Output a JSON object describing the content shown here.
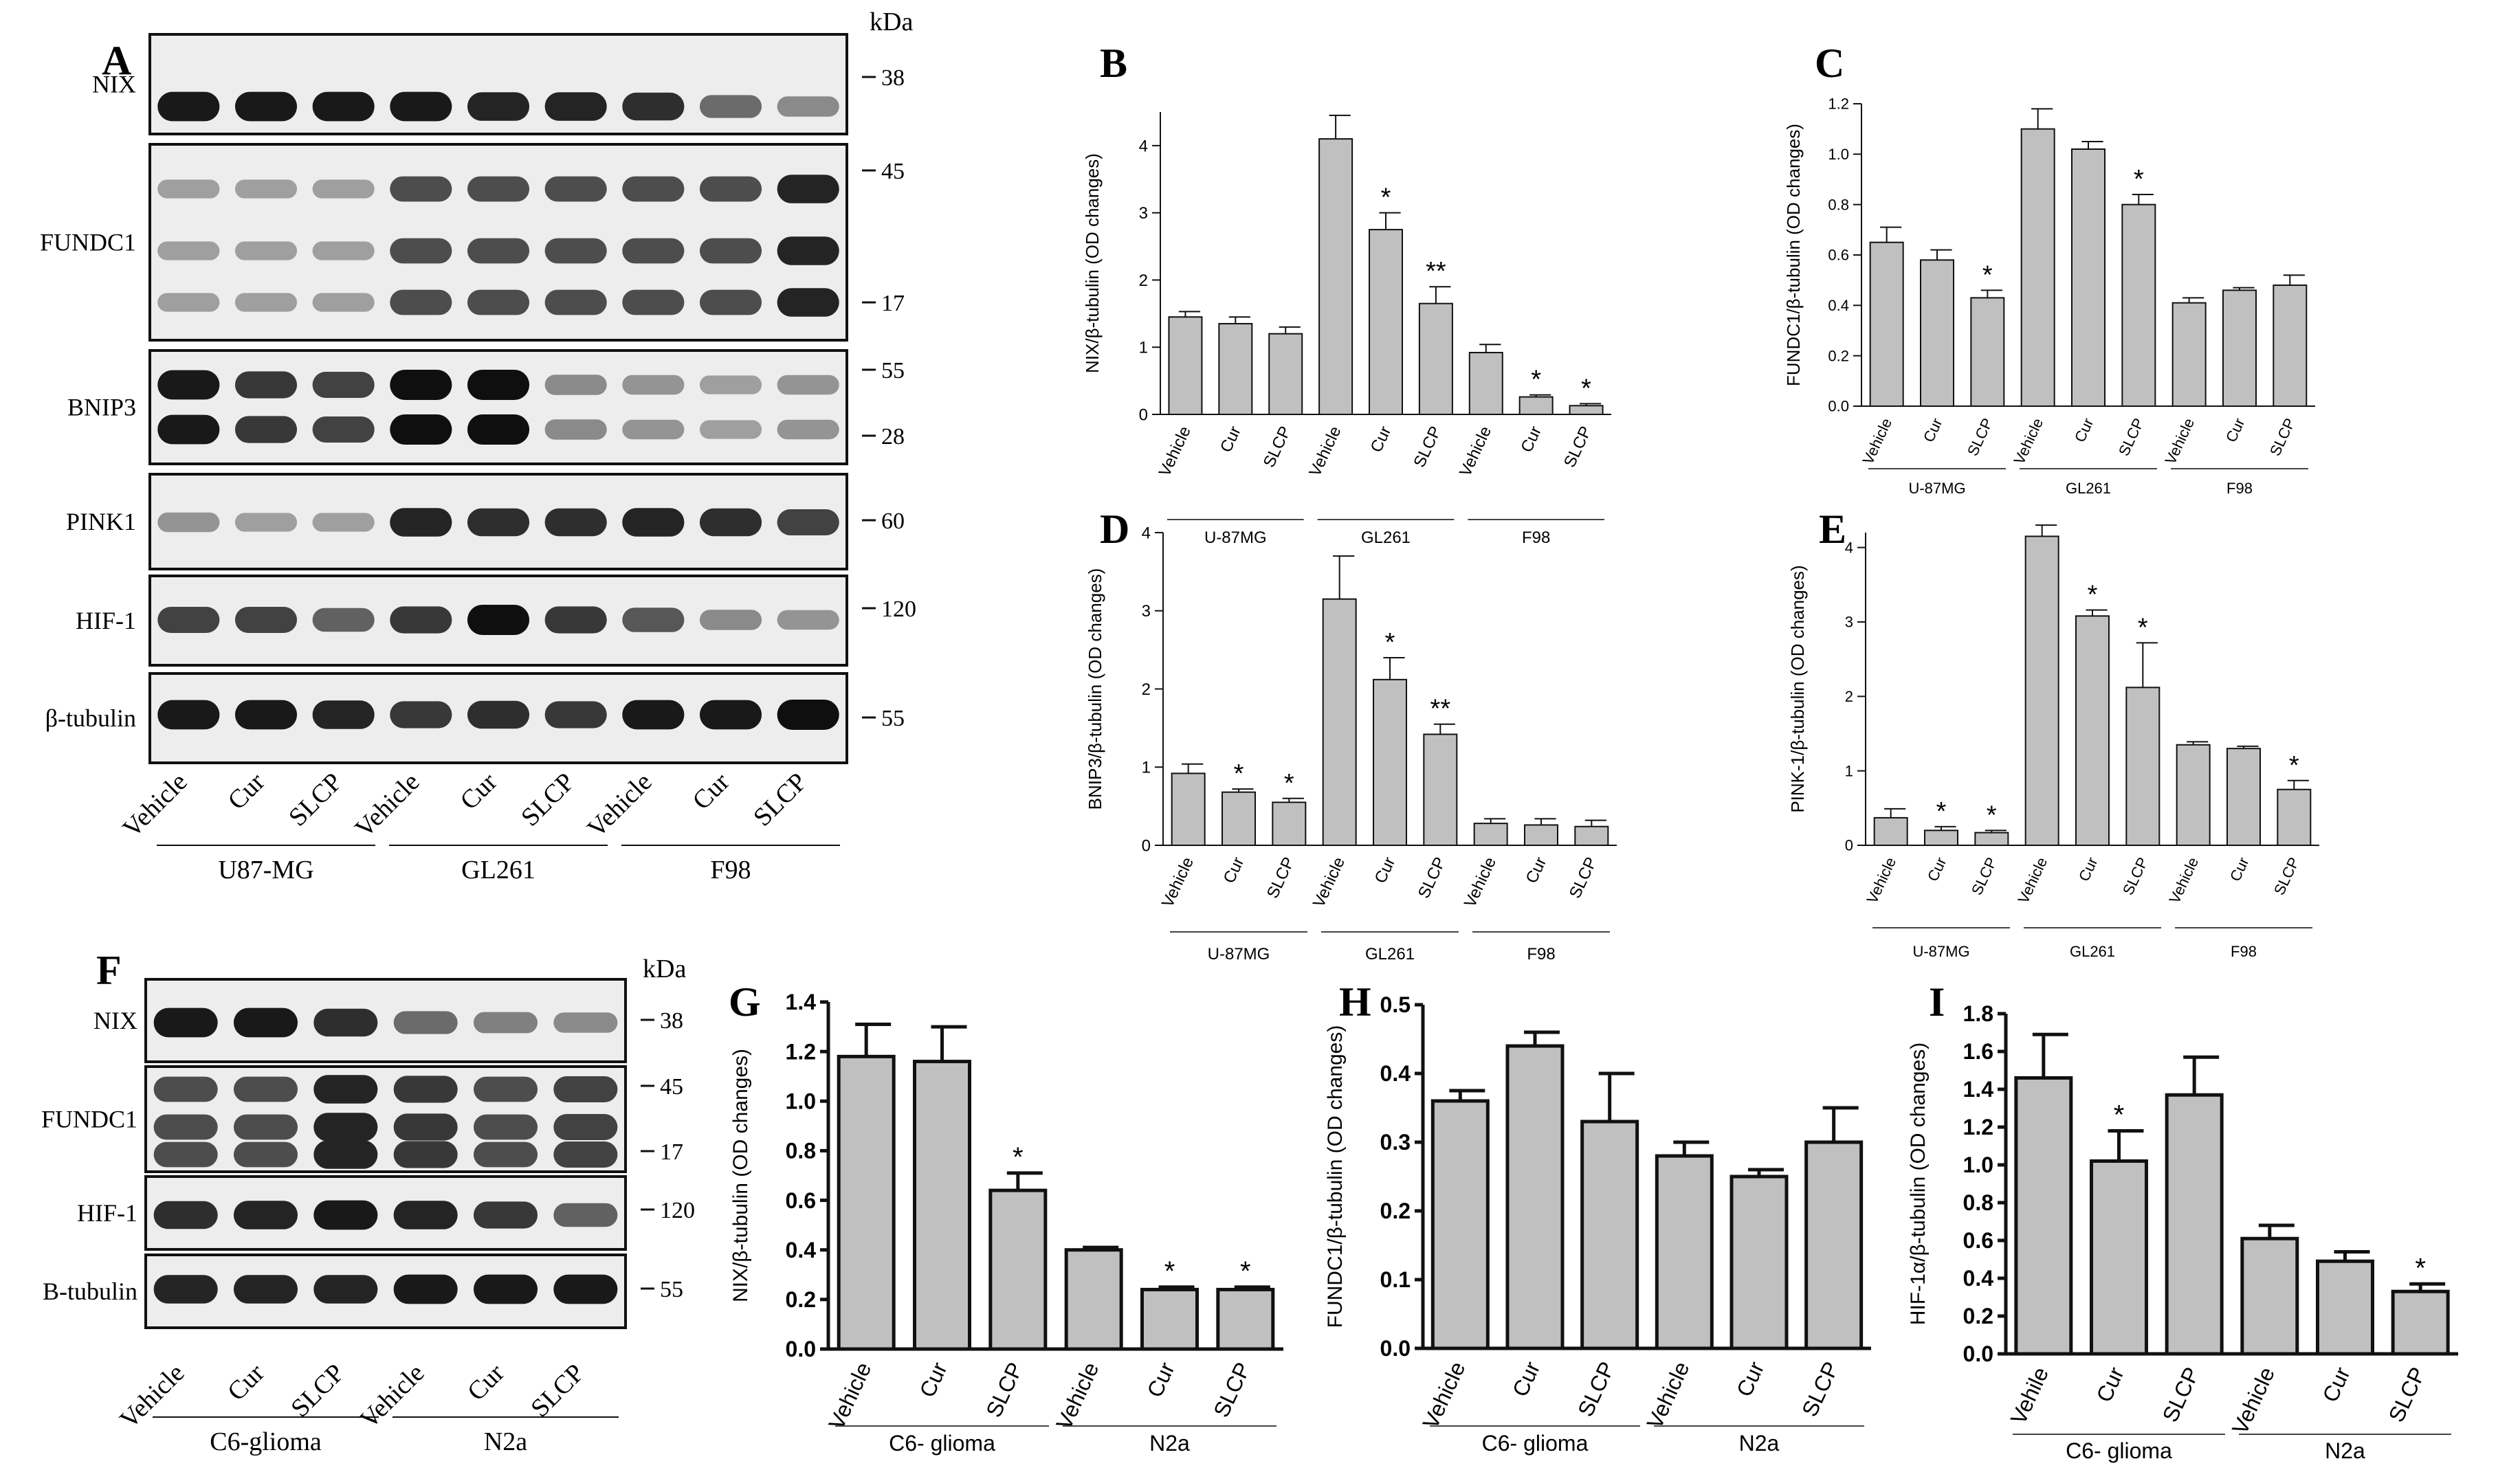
{
  "blotA": {
    "letter": "A",
    "kda_label": "kDa",
    "rows": [
      {
        "label": "NIX",
        "markers": [
          "38"
        ],
        "bands": [
          0.95,
          0.95,
          0.95,
          0.95,
          0.9,
          0.9,
          0.85,
          0.55,
          0.4
        ]
      },
      {
        "label": "FUNDC1",
        "markers": [
          "45",
          "17"
        ],
        "bands": [
          0.3,
          0.3,
          0.3,
          0.7,
          0.7,
          0.7,
          0.7,
          0.7,
          0.9
        ]
      },
      {
        "label": "BNIP3",
        "markers": [
          "55",
          "28"
        ],
        "bands": [
          0.95,
          0.8,
          0.75,
          1.0,
          1.0,
          0.4,
          0.35,
          0.3,
          0.35
        ]
      },
      {
        "label": "PINK1",
        "markers": [
          "60"
        ],
        "bands": [
          0.35,
          0.3,
          0.3,
          0.9,
          0.85,
          0.85,
          0.9,
          0.85,
          0.75
        ]
      },
      {
        "label": "HIF-1",
        "markers": [
          "120"
        ],
        "bands": [
          0.75,
          0.75,
          0.6,
          0.8,
          1.0,
          0.8,
          0.65,
          0.4,
          0.35
        ]
      },
      {
        "label": "β-tubulin",
        "markers": [
          "55"
        ],
        "bands": [
          0.95,
          0.95,
          0.9,
          0.8,
          0.85,
          0.8,
          0.95,
          0.95,
          1.0
        ]
      }
    ],
    "lanes": [
      "Vehicle",
      "Cur",
      "SLCP",
      "Vehicle",
      "Cur",
      "SLCP",
      "Vehicle",
      "Cur",
      "SLCP"
    ],
    "groups": [
      "U87-MG",
      "GL261",
      "F98"
    ]
  },
  "blotF": {
    "letter": "F",
    "kda_label": "kDa",
    "rows": [
      {
        "label": "NIX",
        "markers": [
          "38"
        ],
        "bands": [
          0.95,
          0.95,
          0.85,
          0.55,
          0.45,
          0.4
        ]
      },
      {
        "label": "FUNDC1",
        "markers": [
          "45",
          "17"
        ],
        "bands": [
          0.7,
          0.7,
          0.9,
          0.8,
          0.7,
          0.75
        ]
      },
      {
        "label": "HIF-1",
        "markers": [
          "120"
        ],
        "bands": [
          0.85,
          0.9,
          0.95,
          0.9,
          0.8,
          0.6
        ]
      },
      {
        "label": "B-tubulin",
        "markers": [
          "55"
        ],
        "bands": [
          0.9,
          0.9,
          0.9,
          0.95,
          0.95,
          0.95
        ]
      }
    ],
    "lanes": [
      "Vehicle",
      "Cur",
      "SLCP",
      "Vehicle",
      "Cur",
      "SLCP"
    ],
    "groups": [
      "C6-glioma",
      "N2a"
    ]
  },
  "chart_data": [
    {
      "id": "B",
      "type": "bar",
      "letter": "B",
      "ylabel": "NIX/β-tubulin (OD changes)",
      "ylim": [
        0,
        4.5
      ],
      "ticks": [
        "0",
        "1",
        "2",
        "3",
        "4"
      ],
      "tick_values": [
        0,
        1,
        2,
        3,
        4
      ],
      "categories": [
        "Vehicle",
        "Cur",
        "SLCP",
        "Vehicle",
        "Cur",
        "SLCP",
        "Vehicle",
        "Cur",
        "SLCP"
      ],
      "values": [
        1.45,
        1.35,
        1.2,
        4.1,
        2.75,
        1.65,
        0.92,
        0.26,
        0.13
      ],
      "errors": [
        0.08,
        0.1,
        0.1,
        0.35,
        0.25,
        0.25,
        0.12,
        0.03,
        0.03
      ],
      "signif": [
        "",
        "",
        "",
        "",
        "*",
        "**",
        "",
        "*",
        "*"
      ],
      "groups": [
        "U-87MG",
        "GL261",
        "F98"
      ]
    },
    {
      "id": "C",
      "type": "bar",
      "letter": "C",
      "ylabel": "FUNDC1/β-tubulin (OD changes)",
      "ylim": [
        0,
        1.2
      ],
      "ticks": [
        "0.0",
        "0.2",
        "0.4",
        "0.6",
        "0.8",
        "1.0",
        "1.2"
      ],
      "tick_values": [
        0,
        0.2,
        0.4,
        0.6,
        0.8,
        1.0,
        1.2
      ],
      "categories": [
        "Vehicle",
        "Cur",
        "SLCP",
        "Vehicle",
        "Cur",
        "SLCP",
        "Vehicle",
        "Cur",
        "SLCP"
      ],
      "values": [
        0.65,
        0.58,
        0.43,
        1.1,
        1.02,
        0.8,
        0.41,
        0.46,
        0.48
      ],
      "errors": [
        0.06,
        0.04,
        0.03,
        0.08,
        0.03,
        0.04,
        0.02,
        0.01,
        0.04
      ],
      "signif": [
        "",
        "",
        "*",
        "",
        "",
        "*",
        "",
        "",
        ""
      ],
      "groups": [
        "U-87MG",
        "GL261",
        "F98"
      ]
    },
    {
      "id": "D",
      "type": "bar",
      "letter": "D",
      "ylabel": "BNIP3/β-tubulin (OD changes)",
      "ylim": [
        0,
        4
      ],
      "ticks": [
        "0",
        "1",
        "2",
        "3",
        "4"
      ],
      "tick_values": [
        0,
        1,
        2,
        3,
        4
      ],
      "categories": [
        "Vehicle",
        "Cur",
        "SLCP",
        "Vehicle",
        "Cur",
        "SLCP",
        "Vehicle",
        "Cur",
        "SLCP"
      ],
      "values": [
        0.92,
        0.68,
        0.55,
        3.15,
        2.12,
        1.42,
        0.28,
        0.26,
        0.24
      ],
      "errors": [
        0.12,
        0.04,
        0.05,
        0.55,
        0.28,
        0.13,
        0.06,
        0.08,
        0.08
      ],
      "signif": [
        "",
        "*",
        "*",
        "",
        "*",
        "**",
        "",
        "",
        ""
      ],
      "groups": [
        "U-87MG",
        "GL261",
        "F98"
      ]
    },
    {
      "id": "E",
      "type": "bar",
      "letter": "E",
      "ylabel": "PINK-1/β-tubulin (OD changes)",
      "ylim": [
        0,
        4.2
      ],
      "ticks": [
        "0",
        "1",
        "2",
        "3",
        "4"
      ],
      "tick_values": [
        0,
        1,
        2,
        3,
        4
      ],
      "categories": [
        "Vehicle",
        "Cur",
        "SLCP",
        "Vehicle",
        "Cur",
        "SLCP",
        "Vehicle",
        "Cur",
        "SLCP"
      ],
      "values": [
        0.37,
        0.2,
        0.17,
        4.15,
        3.08,
        2.12,
        1.35,
        1.3,
        0.75
      ],
      "errors": [
        0.12,
        0.05,
        0.03,
        0.15,
        0.08,
        0.6,
        0.04,
        0.03,
        0.12
      ],
      "signif": [
        "",
        "*",
        "*",
        "",
        "*",
        "*",
        "",
        "",
        "*"
      ],
      "groups": [
        "U-87MG",
        "GL261",
        "F98"
      ]
    },
    {
      "id": "G",
      "type": "bar",
      "letter": "G",
      "ylabel": "NIX/β-tubulin (OD changes)",
      "ylim": [
        0,
        1.4
      ],
      "ticks": [
        "0.0",
        "0.2",
        "0.4",
        "0.6",
        "0.8",
        "1.0",
        "1.2",
        "1.4"
      ],
      "tick_values": [
        0,
        0.2,
        0.4,
        0.6,
        0.8,
        1.0,
        1.2,
        1.4
      ],
      "categories": [
        "Vehicle",
        "Cur",
        "SLCP",
        "Vehicle",
        "Cur",
        "SLCP"
      ],
      "values": [
        1.18,
        1.16,
        0.64,
        0.4,
        0.24,
        0.24
      ],
      "errors": [
        0.13,
        0.14,
        0.07,
        0.01,
        0.01,
        0.01
      ],
      "signif": [
        "",
        "",
        "*",
        "",
        "*",
        "*"
      ],
      "groups": [
        "C6- glioma",
        "N2a"
      ]
    },
    {
      "id": "H",
      "type": "bar",
      "letter": "H",
      "ylabel": "FUNDC1/β-tubulin (OD changes)",
      "ylim": [
        0,
        0.5
      ],
      "ticks": [
        "0.0",
        "0.1",
        "0.2",
        "0.3",
        "0.4",
        "0.5"
      ],
      "tick_values": [
        0,
        0.1,
        0.2,
        0.3,
        0.4,
        0.5
      ],
      "categories": [
        "Vehicle",
        "Cur",
        "SLCP",
        "Vehicle",
        "Cur",
        "SLCP"
      ],
      "values": [
        0.36,
        0.44,
        0.33,
        0.28,
        0.25,
        0.3
      ],
      "errors": [
        0.015,
        0.02,
        0.07,
        0.02,
        0.01,
        0.05
      ],
      "signif": [
        "",
        "",
        "",
        "",
        "",
        ""
      ],
      "groups": [
        "C6- glioma",
        "N2a"
      ]
    },
    {
      "id": "I",
      "type": "bar",
      "letter": "I",
      "ylabel": "HIF-1α/β-tubulin (OD changes)",
      "ylim": [
        0,
        1.8
      ],
      "ticks": [
        "0.0",
        "0.2",
        "0.4",
        "0.6",
        "0.8",
        "1.0",
        "1.2",
        "1.4",
        "1.6",
        "1.8"
      ],
      "tick_values": [
        0,
        0.2,
        0.4,
        0.6,
        0.8,
        1.0,
        1.2,
        1.4,
        1.6,
        1.8
      ],
      "categories": [
        "Vehile",
        "Cur",
        "SLCP",
        "Vehicle",
        "Cur",
        "SLCP"
      ],
      "values": [
        1.46,
        1.02,
        1.37,
        0.61,
        0.49,
        0.33
      ],
      "errors": [
        0.23,
        0.16,
        0.2,
        0.07,
        0.05,
        0.04
      ],
      "signif": [
        "",
        "*",
        "",
        "",
        "",
        "*"
      ],
      "groups": [
        "C6- glioma",
        "N2a"
      ]
    }
  ]
}
